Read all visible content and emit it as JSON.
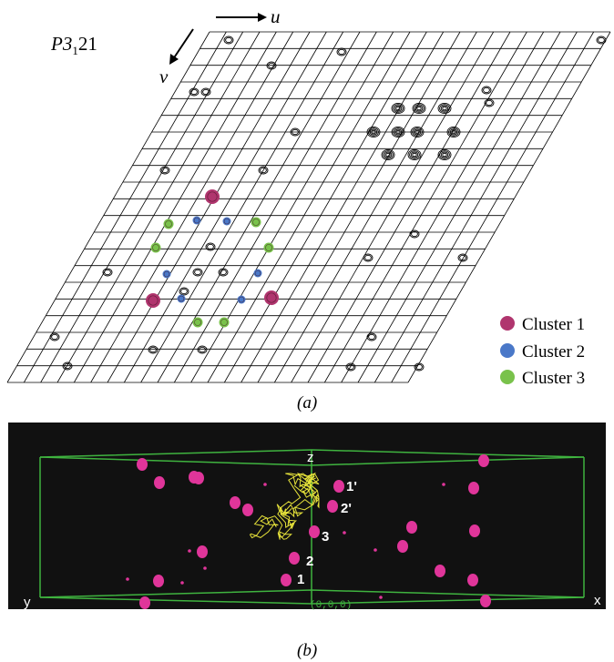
{
  "panel_a": {
    "space_group": {
      "main": "P3",
      "subscript": "1",
      "suffix": "21"
    },
    "axis_u": "u",
    "axis_v": "v",
    "caption": "(a)",
    "legend": [
      {
        "label": "Cluster 1",
        "color": "#b0356e"
      },
      {
        "label": "Cluster 2",
        "color": "#4a78c8"
      },
      {
        "label": "Cluster 3",
        "color": "#79c24b"
      }
    ],
    "grid_color": "#000000"
  },
  "panel_b": {
    "caption": "(b)",
    "axis_z": "z",
    "axis_x": "x",
    "axis_y": "y",
    "origin_label": "(0,0,0)",
    "peak_labels": [
      "1'",
      "2'",
      "3",
      "2",
      "1"
    ],
    "box_color": "#3fb33f",
    "peak_color": "#e0359a",
    "trace_color": "#e6e23a",
    "background": "#111111"
  }
}
